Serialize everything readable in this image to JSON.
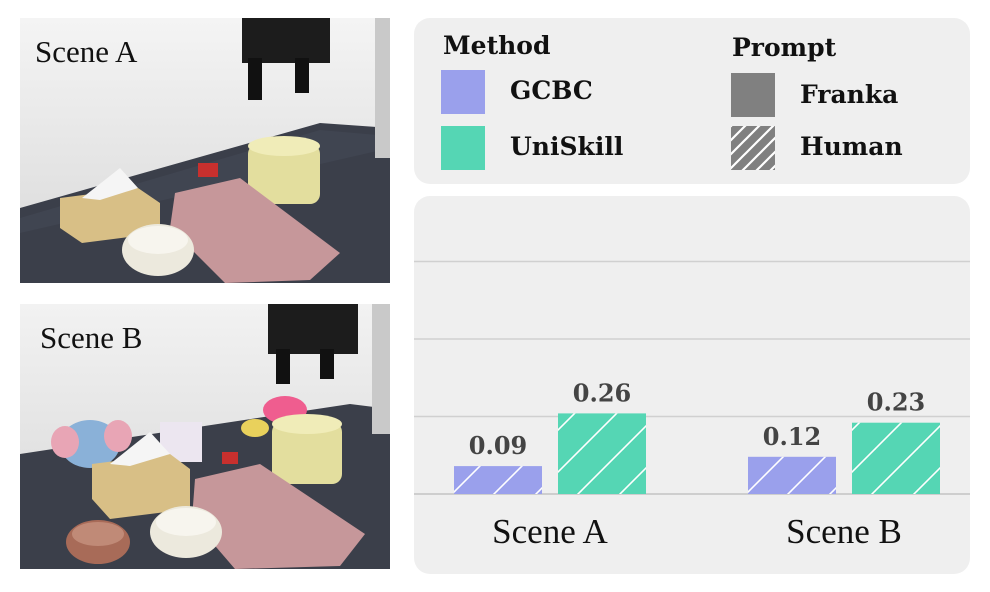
{
  "scenes": [
    {
      "label": "Scene A"
    },
    {
      "label": "Scene B"
    }
  ],
  "legend": {
    "method_title": "Method",
    "prompt_title": "Prompt",
    "methods": [
      {
        "name": "GCBC",
        "color": "#9aa0ec"
      },
      {
        "name": "UniSkill",
        "color": "#55d6b4"
      }
    ],
    "prompts": [
      {
        "name": "Franka",
        "pattern": "solid",
        "color": "#808080"
      },
      {
        "name": "Human",
        "pattern": "hatched",
        "color": "#808080"
      }
    ]
  },
  "chart_data": {
    "type": "bar",
    "categories": [
      "Scene A",
      "Scene B"
    ],
    "series": [
      {
        "name": "GCBC",
        "values": [
          0.09,
          0.12
        ],
        "color": "#9aa0ec",
        "pattern": "hatched"
      },
      {
        "name": "UniSkill",
        "values": [
          0.26,
          0.23
        ],
        "color": "#55d6b4",
        "pattern": "hatched"
      }
    ],
    "value_labels": [
      [
        "0.09",
        "0.12"
      ],
      [
        "0.26",
        "0.23"
      ]
    ],
    "ylim": [
      0,
      1.0
    ],
    "grid": true,
    "title": "",
    "xlabel": "",
    "ylabel": ""
  }
}
